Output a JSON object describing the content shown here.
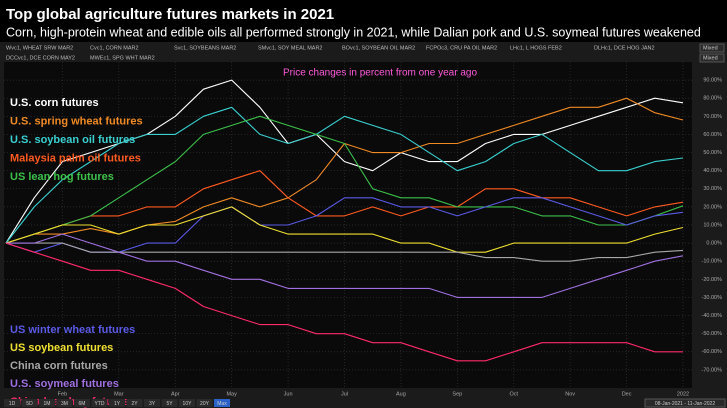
{
  "chart_data": {
    "type": "line",
    "title": "Top global agriculture futures markets in 2021",
    "subtitle": "Corn, high-protein wheat and edible oils all performed strongly in 2021, while Dalian pork and U.S. soymeal futures weakened",
    "annotation": "Price changes in percent from one year ago",
    "header_codes": [
      "Wvc1, WHEAT SRW MAR2",
      "Cvc1, CORN MAR2",
      "Svc1, SOYBEANS MAR2",
      "SMvc1, SOY MEAL MAR2",
      "BOvc1, SOYBEAN OIL MAR2",
      "FCPOc3, CRU PA OIL MAR2",
      "LHc1, L HOGS FEB2",
      "DLHc1, DCE HOG JAN2",
      "DCCvc1, DCE CORN MAY2",
      "MWEc1, SPG WHT MAR2"
    ],
    "scale_modes": [
      "Mixed",
      "Mixed"
    ],
    "ranges": [
      "1D",
      "5D",
      "1M",
      "3M",
      "6M",
      "YTD",
      "1Y",
      "2Y",
      "3Y",
      "5Y",
      "10Y",
      "20Y",
      "Max"
    ],
    "date_range": "08-Jan-2021 - 11-Jan-2022",
    "categories": [
      null,
      null,
      "Feb",
      null,
      "Mar",
      null,
      "Apr",
      null,
      "May",
      null,
      "Jun",
      null,
      "Jul",
      null,
      "Aug",
      null,
      "Sep",
      null,
      "Oct",
      null,
      "Nov",
      null,
      "Dec",
      null,
      "2022"
    ],
    "ylim": [
      -80,
      100
    ],
    "yticks": [
      {
        "value": -70,
        "label": "-70.00%"
      },
      {
        "value": -60,
        "label": "-60.00%"
      },
      {
        "value": -50,
        "label": "-50.00%"
      },
      {
        "value": -40,
        "label": "-40.00%"
      },
      {
        "value": -30,
        "label": "-30.00%"
      },
      {
        "value": -20,
        "label": "-20.00%"
      },
      {
        "value": -10,
        "label": "-10.00%"
      },
      {
        "value": 0,
        "label": "0.00%"
      },
      {
        "value": 10,
        "label": "10.00%"
      },
      {
        "value": 20,
        "label": "20.00%"
      },
      {
        "value": 30,
        "label": "30.00%"
      },
      {
        "value": 40,
        "label": "40.00%"
      },
      {
        "value": 50,
        "label": "50.00%"
      },
      {
        "value": 60,
        "label": "60.00%"
      },
      {
        "value": 70,
        "label": "70.00%"
      },
      {
        "value": 80,
        "label": "80.00%"
      },
      {
        "value": 90,
        "label": "90.00%"
      }
    ],
    "grid": true,
    "series": [
      {
        "name": "U.S. corn futures",
        "color": "#ffffff",
        "values": [
          0,
          25,
          45,
          50,
          55,
          60,
          70,
          85,
          90,
          75,
          55,
          60,
          45,
          40,
          50,
          45,
          45,
          55,
          60,
          60,
          65,
          70,
          75,
          80,
          77.5
        ]
      },
      {
        "name": "U.S. spring wheat futures",
        "color": "#f08a24",
        "values": [
          0,
          5,
          5,
          8,
          5,
          10,
          12,
          20,
          25,
          20,
          25,
          35,
          55,
          50,
          50,
          55,
          55,
          60,
          65,
          70,
          75,
          75,
          80,
          72,
          68
        ]
      },
      {
        "name": "U.S. soybean oil futures",
        "color": "#3ad0d0",
        "values": [
          0,
          20,
          35,
          45,
          55,
          60,
          60,
          70,
          75,
          60,
          55,
          60,
          70,
          65,
          60,
          50,
          40,
          45,
          55,
          60,
          50,
          40,
          40,
          45,
          47
        ]
      },
      {
        "name": "Malaysia palm oil futures",
        "color": "#ff5a1f",
        "values": [
          0,
          5,
          10,
          15,
          15,
          20,
          20,
          30,
          35,
          40,
          25,
          15,
          15,
          20,
          15,
          20,
          20,
          30,
          30,
          25,
          25,
          20,
          15,
          20,
          22.6
        ]
      },
      {
        "name": "US lean hog futures",
        "color": "#3cc04a",
        "values": [
          0,
          5,
          10,
          15,
          25,
          35,
          45,
          60,
          65,
          70,
          65,
          60,
          55,
          30,
          25,
          25,
          20,
          20,
          20,
          15,
          15,
          10,
          10,
          15,
          20.6
        ]
      },
      {
        "name": "US winter wheat futures",
        "color": "#5a5ae6",
        "values": [
          0,
          -5,
          0,
          -5,
          -5,
          0,
          0,
          15,
          20,
          10,
          10,
          15,
          25,
          25,
          20,
          20,
          15,
          20,
          25,
          25,
          20,
          15,
          10,
          15,
          17
        ]
      },
      {
        "name": "US soybean futures",
        "color": "#f0e030",
        "values": [
          0,
          5,
          10,
          10,
          5,
          10,
          10,
          15,
          20,
          10,
          5,
          5,
          5,
          5,
          0,
          0,
          -5,
          -5,
          0,
          0,
          0,
          0,
          0,
          5,
          8.6
        ]
      },
      {
        "name": "China corn futures",
        "color": "#a8a8a8",
        "values": [
          0,
          0,
          0,
          -5,
          -5,
          -5,
          -5,
          -5,
          -5,
          -5,
          -5,
          -5,
          -5,
          -5,
          -5,
          -5,
          -5,
          -8,
          -8,
          -10,
          -10,
          -8,
          -8,
          -5,
          -4
        ]
      },
      {
        "name": "U.S. soymeal futures",
        "color": "#a070e0",
        "values": [
          0,
          0,
          5,
          0,
          -5,
          -10,
          -10,
          -15,
          -20,
          -20,
          -25,
          -25,
          -25,
          -25,
          -25,
          -25,
          -30,
          -30,
          -30,
          -30,
          -25,
          -20,
          -15,
          -10,
          -7
        ]
      },
      {
        "name": "China lean hog futures",
        "color": "#ff2a6a",
        "values": [
          0,
          -5,
          -10,
          -15,
          -15,
          -20,
          -25,
          -35,
          -40,
          -45,
          -45,
          -50,
          -50,
          -55,
          -55,
          -60,
          -65,
          -65,
          -60,
          -55,
          -55,
          -55,
          -55,
          -60,
          -60
        ]
      }
    ]
  }
}
